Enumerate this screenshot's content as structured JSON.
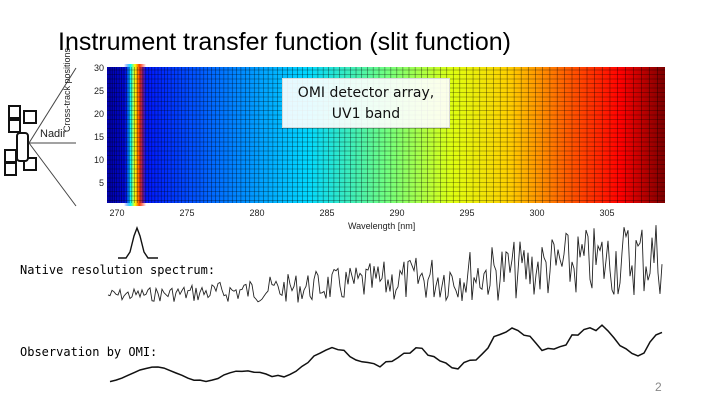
{
  "slide": {
    "title": "Instrument transfer function (slit function)",
    "callout": "OMI detector array, UV1 band",
    "nadir_label": "Nadir",
    "native_label": "Native resolution spectrum:",
    "observation_label": "Observation by OMI:",
    "page_number": "2"
  },
  "detector_plot": {
    "ylabel": "Cross-track positions",
    "xlabel": "Wavelength [nm]",
    "yticks": [
      "30",
      "25",
      "20",
      "15",
      "10",
      "5"
    ],
    "xticks": [
      "270",
      "275",
      "280",
      "285",
      "290",
      "295",
      "300",
      "305"
    ]
  },
  "icons": {
    "satellite": "satellite-icon",
    "slit_function": "slit-function-curve-icon"
  }
}
